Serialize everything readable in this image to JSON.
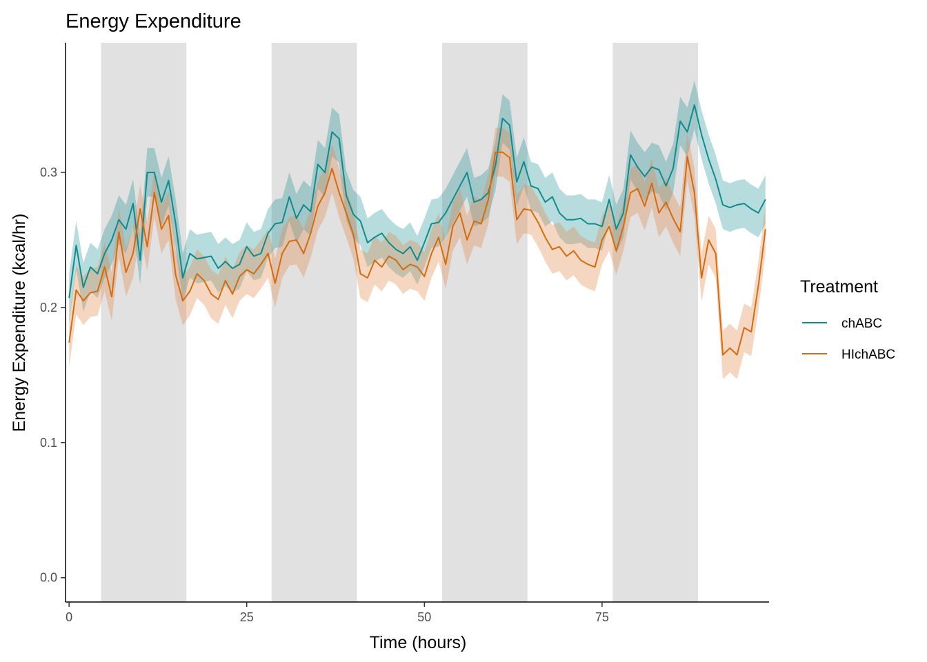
{
  "chart_data": {
    "type": "line",
    "title": "Energy Expenditure",
    "xlabel": "Time (hours)",
    "ylabel": "Energy Expenditure (kcal/hr)",
    "xlim": [
      -0.5,
      98.5
    ],
    "ylim": [
      -0.018,
      0.396
    ],
    "xticks": [
      0,
      25,
      50,
      75
    ],
    "yticks": [
      0.0,
      0.1,
      0.2,
      0.3
    ],
    "ytick_labels": [
      "0.0",
      "0.1",
      "0.2",
      "0.3"
    ],
    "grid": false,
    "dark_periods": [
      [
        4.5,
        16.5
      ],
      [
        28.5,
        40.5
      ],
      [
        52.5,
        64.5
      ],
      [
        76.5,
        88.5
      ]
    ],
    "dark_period_color": "#e1e1e1",
    "legend": {
      "title": "Treatment",
      "position": "right"
    },
    "series": [
      {
        "name": "chABC",
        "color": "#0f8b8d",
        "ribbon_color": "#0f8b8d",
        "ribbon_halfwidth": 0.018,
        "x": [
          0,
          1,
          2,
          3,
          4,
          5,
          6,
          7,
          8,
          9,
          10,
          11,
          12,
          13,
          14,
          15,
          16,
          17,
          18,
          19,
          20,
          21,
          22,
          23,
          24,
          25,
          26,
          27,
          28,
          29,
          30,
          31,
          32,
          33,
          34,
          35,
          36,
          37,
          38,
          39,
          40,
          41,
          42,
          43,
          44,
          45,
          46,
          47,
          48,
          49,
          50,
          51,
          52,
          53,
          54,
          55,
          56,
          57,
          58,
          59,
          60,
          61,
          62,
          63,
          64,
          65,
          66,
          67,
          68,
          69,
          70,
          71,
          72,
          73,
          74,
          75,
          76,
          77,
          78,
          79,
          80,
          81,
          82,
          83,
          84,
          85,
          86,
          87,
          88,
          89,
          90,
          91,
          92,
          93,
          94,
          95,
          96,
          97,
          98
        ],
        "y": [
          0.207,
          0.246,
          0.215,
          0.23,
          0.225,
          0.24,
          0.25,
          0.265,
          0.258,
          0.277,
          0.235,
          0.3,
          0.3,
          0.278,
          0.294,
          0.262,
          0.222,
          0.24,
          0.236,
          0.237,
          0.238,
          0.229,
          0.234,
          0.229,
          0.232,
          0.245,
          0.238,
          0.24,
          0.255,
          0.262,
          0.263,
          0.282,
          0.266,
          0.276,
          0.271,
          0.306,
          0.3,
          0.33,
          0.325,
          0.283,
          0.269,
          0.264,
          0.248,
          0.252,
          0.255,
          0.248,
          0.243,
          0.24,
          0.245,
          0.235,
          0.248,
          0.262,
          0.263,
          0.27,
          0.28,
          0.29,
          0.3,
          0.278,
          0.28,
          0.285,
          0.305,
          0.34,
          0.335,
          0.293,
          0.308,
          0.29,
          0.288,
          0.278,
          0.282,
          0.27,
          0.265,
          0.265,
          0.266,
          0.262,
          0.262,
          0.26,
          0.28,
          0.258,
          0.27,
          0.313,
          0.304,
          0.297,
          0.304,
          0.302,
          0.29,
          0.303,
          0.338,
          0.33,
          0.35,
          0.328,
          0.31,
          0.295,
          0.276,
          0.274,
          0.276,
          0.277,
          0.273,
          0.27,
          0.28
        ]
      },
      {
        "name": "HIchABC",
        "color": "#d26c0e",
        "ribbon_color": "#e08a4c",
        "ribbon_halfwidth": 0.018,
        "x": [
          0,
          1,
          2,
          3,
          4,
          5,
          6,
          7,
          8,
          9,
          10,
          11,
          12,
          13,
          14,
          15,
          16,
          17,
          18,
          19,
          20,
          21,
          22,
          23,
          24,
          25,
          26,
          27,
          28,
          29,
          30,
          31,
          32,
          33,
          34,
          35,
          36,
          37,
          38,
          39,
          40,
          41,
          42,
          43,
          44,
          45,
          46,
          47,
          48,
          49,
          50,
          51,
          52,
          53,
          54,
          55,
          56,
          57,
          58,
          59,
          60,
          61,
          62,
          63,
          64,
          65,
          66,
          67,
          68,
          69,
          70,
          71,
          72,
          73,
          74,
          75,
          76,
          77,
          78,
          79,
          80,
          81,
          82,
          83,
          84,
          85,
          86,
          87,
          88,
          89,
          90,
          91,
          92,
          93,
          94,
          95,
          96,
          97,
          98
        ],
        "y": [
          0.174,
          0.213,
          0.205,
          0.211,
          0.212,
          0.23,
          0.208,
          0.256,
          0.226,
          0.24,
          0.273,
          0.245,
          0.285,
          0.258,
          0.268,
          0.224,
          0.205,
          0.212,
          0.225,
          0.22,
          0.21,
          0.206,
          0.22,
          0.21,
          0.223,
          0.228,
          0.225,
          0.232,
          0.24,
          0.218,
          0.24,
          0.249,
          0.25,
          0.24,
          0.255,
          0.275,
          0.285,
          0.303,
          0.285,
          0.27,
          0.254,
          0.225,
          0.222,
          0.235,
          0.23,
          0.238,
          0.235,
          0.228,
          0.232,
          0.23,
          0.223,
          0.24,
          0.252,
          0.232,
          0.26,
          0.27,
          0.25,
          0.264,
          0.262,
          0.28,
          0.315,
          0.315,
          0.311,
          0.265,
          0.273,
          0.272,
          0.263,
          0.252,
          0.243,
          0.245,
          0.238,
          0.242,
          0.235,
          0.232,
          0.23,
          0.25,
          0.26,
          0.242,
          0.26,
          0.285,
          0.288,
          0.275,
          0.292,
          0.27,
          0.278,
          0.266,
          0.256,
          0.312,
          0.285,
          0.222,
          0.25,
          0.24,
          0.165,
          0.17,
          0.165,
          0.185,
          0.182,
          0.216,
          0.258
        ]
      }
    ]
  }
}
